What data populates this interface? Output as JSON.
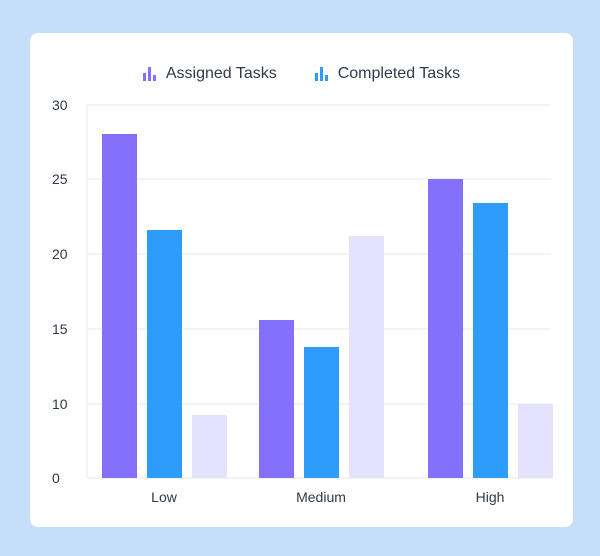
{
  "chart_data": {
    "type": "bar",
    "categories": [
      "Low",
      "Medium",
      "High"
    ],
    "series": [
      {
        "name": "Assigned Tasks",
        "color": "#8470fa",
        "values": [
          28,
          15.6,
          25
        ]
      },
      {
        "name": "Completed Tasks",
        "color": "#2e9cfb",
        "values": [
          21.6,
          13.8,
          23.4
        ]
      },
      {
        "color": "#e5e2fd",
        "values": [
          8.5,
          21.2,
          10
        ]
      }
    ],
    "yticks": [
      "0",
      "10",
      "15",
      "20",
      "25",
      "30"
    ],
    "grid": "horizontal",
    "legend_position": "top-center"
  }
}
